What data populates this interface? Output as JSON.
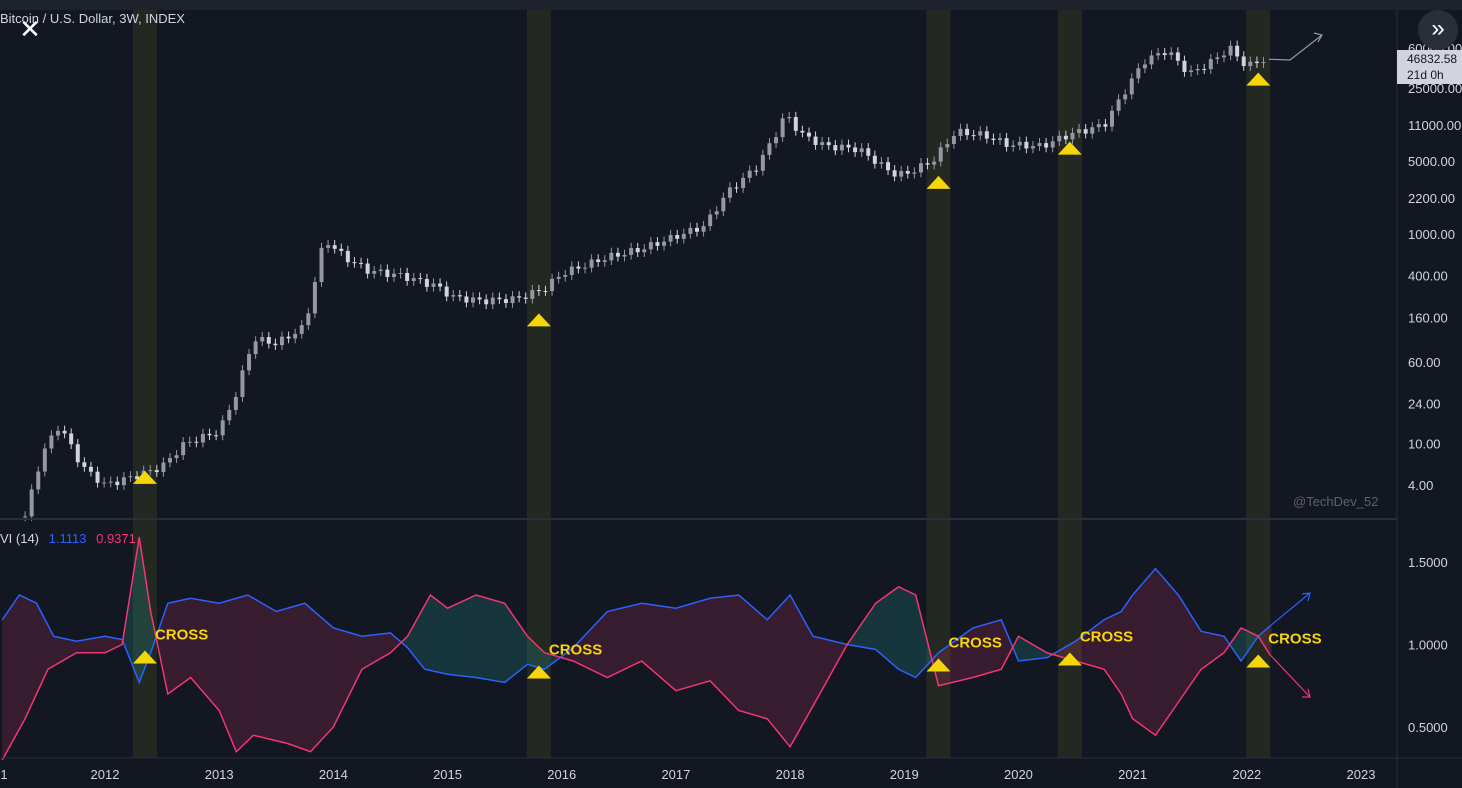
{
  "chart_data": [
    {
      "type": "line",
      "title": "Bitcoin / U.S. Dollar, 3W, INDEX",
      "y_scale": "log",
      "y_ticks": [
        "60000.00",
        "25000.00",
        "11000.00",
        "5000.00",
        "2200.00",
        "1000.00",
        "400.00",
        "160.00",
        "60.00",
        "24.00",
        "10.00",
        "4.00"
      ],
      "x_ticks": [
        "1",
        "2012",
        "2013",
        "2014",
        "2015",
        "2016",
        "2017",
        "2018",
        "2019",
        "2020",
        "2021",
        "2022",
        "2023"
      ],
      "last_price": "46832.58",
      "countdown": "21d 0h",
      "watermark": "@TechDev_52",
      "series": [
        {
          "x": [
            2011.3,
            2011.45,
            2011.6,
            2011.8,
            2012.0,
            2012.3,
            2012.5,
            2012.7,
            2013.0,
            2013.15,
            2013.3,
            2013.5,
            2013.75,
            2013.92,
            2014.1,
            2014.3,
            2014.6,
            2014.9,
            2015.05,
            2015.3,
            2015.6,
            2015.85,
            2016.0,
            2016.4,
            2016.7,
            2017.0,
            2017.25,
            2017.45,
            2017.7,
            2017.85,
            2017.96,
            2018.1,
            2018.3,
            2018.6,
            2018.9,
            2019.0,
            2019.25,
            2019.45,
            2019.7,
            2019.9,
            2020.2,
            2020.45,
            2020.75,
            2020.95,
            2021.1,
            2021.3,
            2021.5,
            2021.7,
            2021.85,
            2022.0,
            2022.15
          ],
          "values": [
            2,
            8,
            15,
            6,
            4,
            5,
            6,
            10,
            13,
            30,
            100,
            90,
            130,
            900,
            600,
            450,
            400,
            320,
            250,
            230,
            240,
            300,
            420,
            600,
            720,
            950,
            1200,
            2500,
            4300,
            8000,
            14000,
            9000,
            7000,
            6500,
            3800,
            3700,
            5000,
            9500,
            8800,
            7200,
            6900,
            9000,
            11000,
            25000,
            45000,
            57000,
            34000,
            45000,
            60000,
            40000,
            46833
          ]
        }
      ]
    },
    {
      "type": "line",
      "title": "VI (14)",
      "values_label": [
        "1.1113",
        "0.9371"
      ],
      "y_ticks": [
        "1.5000",
        "1.0000",
        "0.5000"
      ],
      "ylim": [
        0.3,
        1.75
      ],
      "cross_label": "CROSS",
      "series": [
        {
          "name": "VI+",
          "color": "#2962ff",
          "x": [
            2011.1,
            2011.25,
            2011.4,
            2011.55,
            2011.75,
            2012.0,
            2012.15,
            2012.3,
            2012.4,
            2012.55,
            2012.75,
            2013.0,
            2013.25,
            2013.5,
            2013.75,
            2014.0,
            2014.25,
            2014.5,
            2014.65,
            2014.8,
            2015.0,
            2015.25,
            2015.5,
            2015.7,
            2015.85,
            2016.1,
            2016.4,
            2016.7,
            2017.0,
            2017.3,
            2017.55,
            2017.8,
            2018.0,
            2018.2,
            2018.5,
            2018.75,
            2018.95,
            2019.1,
            2019.3,
            2019.6,
            2019.85,
            2020.0,
            2020.25,
            2020.5,
            2020.75,
            2020.9,
            2021.0,
            2021.2,
            2021.4,
            2021.6,
            2021.8,
            2021.95,
            2022.1,
            2022.2
          ],
          "values": [
            1.15,
            1.3,
            1.25,
            1.05,
            1.02,
            1.05,
            1.03,
            0.77,
            0.95,
            1.25,
            1.28,
            1.25,
            1.3,
            1.2,
            1.25,
            1.1,
            1.05,
            1.07,
            0.98,
            0.85,
            0.82,
            0.8,
            0.77,
            0.88,
            0.85,
            0.98,
            1.2,
            1.25,
            1.22,
            1.28,
            1.3,
            1.15,
            1.3,
            1.05,
            1.0,
            0.97,
            0.85,
            0.8,
            0.95,
            1.1,
            1.15,
            0.9,
            0.92,
            1.02,
            1.15,
            1.2,
            1.3,
            1.46,
            1.3,
            1.08,
            1.05,
            0.9,
            1.05,
            1.11
          ]
        },
        {
          "name": "VI-",
          "color": "#f23672",
          "x": [
            2011.1,
            2011.3,
            2011.5,
            2011.75,
            2012.0,
            2012.15,
            2012.3,
            2012.4,
            2012.55,
            2012.75,
            2013.0,
            2013.15,
            2013.3,
            2013.6,
            2013.8,
            2014.0,
            2014.25,
            2014.5,
            2014.65,
            2014.85,
            2015.0,
            2015.25,
            2015.5,
            2015.7,
            2015.85,
            2016.1,
            2016.4,
            2016.7,
            2017.0,
            2017.3,
            2017.55,
            2017.8,
            2018.0,
            2018.3,
            2018.5,
            2018.75,
            2018.95,
            2019.1,
            2019.3,
            2019.6,
            2019.85,
            2020.0,
            2020.25,
            2020.5,
            2020.75,
            2020.9,
            2021.0,
            2021.2,
            2021.4,
            2021.6,
            2021.8,
            2021.95,
            2022.1,
            2022.2
          ],
          "values": [
            0.3,
            0.55,
            0.85,
            0.95,
            0.95,
            1.0,
            1.65,
            1.2,
            0.7,
            0.8,
            0.6,
            0.35,
            0.45,
            0.4,
            0.35,
            0.5,
            0.85,
            0.95,
            1.05,
            1.3,
            1.22,
            1.3,
            1.25,
            1.05,
            0.95,
            0.9,
            0.8,
            0.9,
            0.72,
            0.78,
            0.6,
            0.55,
            0.38,
            0.75,
            1.0,
            1.25,
            1.35,
            1.3,
            0.75,
            0.8,
            0.85,
            1.05,
            0.95,
            0.9,
            0.85,
            0.7,
            0.55,
            0.45,
            0.65,
            0.85,
            0.95,
            1.1,
            1.05,
            0.94
          ]
        }
      ],
      "cross_dates": [
        2012.35,
        2015.8,
        2019.3,
        2020.45,
        2022.1
      ],
      "highlight_bands": [
        2012.35,
        2015.8,
        2019.3,
        2020.45,
        2022.1
      ]
    }
  ]
}
